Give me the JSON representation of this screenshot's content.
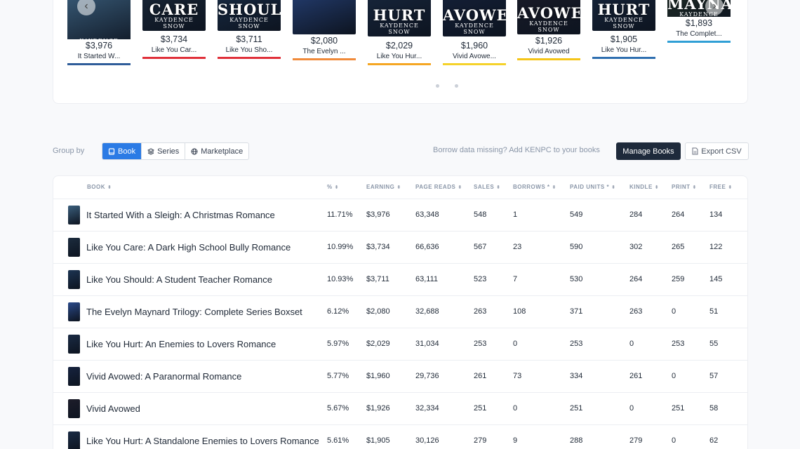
{
  "carousel": {
    "prev_icon": "chevron-left-icon",
    "next_icon": "chevron-right-icon",
    "books": [
      {
        "amount": "$3,976",
        "name": "It Started W...",
        "color": "#2f5d9a",
        "cover_bg": "#3b5f7d",
        "cover_title": "",
        "cover_author": "KAYDENCE SNOW",
        "cover_top": 0,
        "info_top": 75
      },
      {
        "amount": "$3,734",
        "name": "Like You Car...",
        "color": "#e0303a",
        "cover_bg": "#1c2c3e",
        "cover_title": "CARE",
        "cover_author": "KAYDENCE SNOW",
        "cover_top": -30,
        "info_top": 66
      },
      {
        "amount": "$3,711",
        "name": "Like You Sho...",
        "color": "#e0303a",
        "cover_bg": "#1c3452",
        "cover_title": "SHOULD",
        "cover_author": "KAYDENCE SNOW",
        "cover_top": -30,
        "info_top": 66
      },
      {
        "amount": "$2,080",
        "name": "The Evelyn ...",
        "color": "#f08a3a",
        "cover_bg": "#2b4a8a",
        "cover_title": "",
        "cover_author": "",
        "cover_top": -25,
        "info_top": 68
      },
      {
        "amount": "$2,029",
        "name": "Like You Hur...",
        "color": "#f5a623",
        "cover_bg": "#1a2b44",
        "cover_title": "HURT",
        "cover_author": "KAYDENCE SNOW",
        "cover_top": -22,
        "info_top": 75
      },
      {
        "amount": "$1,960",
        "name": "Vivid Avowe...",
        "color": "#f5d22a",
        "cover_bg": "#16233f",
        "cover_title": "AVOWED",
        "cover_author": "KAYDENCE SNOW",
        "cover_top": -22,
        "info_top": 75
      },
      {
        "amount": "$1,926",
        "name": "Vivid Avowed",
        "color": "#f5c518",
        "cover_bg": "#1d1d2a",
        "cover_title": "AVOWED",
        "cover_author": "KAYDENCE SNOW",
        "cover_top": -25,
        "info_top": 68
      },
      {
        "amount": "$1,905",
        "name": "Like You Hur...",
        "color": "#2f6fb0",
        "cover_bg": "#1a2b44",
        "cover_title": "HURT",
        "cover_author": "KAYDENCE SNOW",
        "cover_top": -30,
        "info_top": 66
      },
      {
        "amount": "$1,893",
        "name": "The Complet...",
        "color": "#2f9fd5",
        "cover_bg": "#2a3b2a",
        "cover_title": "MAYNARD",
        "cover_author": "KAYDENCE SNOW",
        "cover_top": -38,
        "info_top": 43
      }
    ]
  },
  "toolbar": {
    "group_by_label": "Group by",
    "group_options": [
      {
        "label": "Book",
        "icon": "book-icon",
        "active": true
      },
      {
        "label": "Series",
        "icon": "layers-icon",
        "active": false
      },
      {
        "label": "Marketplace",
        "icon": "globe-icon",
        "active": false
      }
    ],
    "missing_note": "Borrow data missing? Add KENPC to your books",
    "manage_label": "Manage Books",
    "export_label": "Export CSV"
  },
  "table": {
    "columns": [
      "BOOK",
      "%",
      "EARNING",
      "PAGE READS",
      "SALES",
      "BORROWS *",
      "PAID UNITS *",
      "KINDLE",
      "PRINT",
      "FREE"
    ],
    "rows": [
      {
        "thumb": "#3b5f7d",
        "cells": [
          "It Started With a Sleigh: A Christmas Romance",
          "11.71%",
          "$3,976",
          "63,348",
          "548",
          "1",
          "549",
          "284",
          "264",
          "134"
        ]
      },
      {
        "thumb": "#1c2c3e",
        "cells": [
          "Like You Care: A Dark High School Bully Romance",
          "10.99%",
          "$3,734",
          "66,636",
          "567",
          "23",
          "590",
          "302",
          "265",
          "122"
        ]
      },
      {
        "thumb": "#1c3452",
        "cells": [
          "Like You Should: A Student Teacher Romance",
          "10.93%",
          "$3,711",
          "63,111",
          "523",
          "7",
          "530",
          "264",
          "259",
          "145"
        ]
      },
      {
        "thumb": "#2b4a8a",
        "cells": [
          "The Evelyn Maynard Trilogy: Complete Series Boxset",
          "6.12%",
          "$2,080",
          "32,688",
          "263",
          "108",
          "371",
          "263",
          "0",
          "51"
        ]
      },
      {
        "thumb": "#1a2b44",
        "cells": [
          "Like You Hurt: An Enemies to Lovers Romance",
          "5.97%",
          "$2,029",
          "31,034",
          "253",
          "0",
          "253",
          "0",
          "253",
          "55"
        ]
      },
      {
        "thumb": "#16233f",
        "cells": [
          "Vivid Avowed: A Paranormal Romance",
          "5.77%",
          "$1,960",
          "29,736",
          "261",
          "73",
          "334",
          "261",
          "0",
          "57"
        ]
      },
      {
        "thumb": "#1d1d2a",
        "cells": [
          "Vivid Avowed",
          "5.67%",
          "$1,926",
          "32,334",
          "251",
          "0",
          "251",
          "0",
          "251",
          "58"
        ]
      },
      {
        "thumb": "#1a2b44",
        "cells": [
          "Like You Hurt: A Standalone Enemies to Lovers Romance",
          "5.61%",
          "$1,905",
          "30,126",
          "279",
          "9",
          "288",
          "279",
          "0",
          "62"
        ]
      }
    ]
  }
}
